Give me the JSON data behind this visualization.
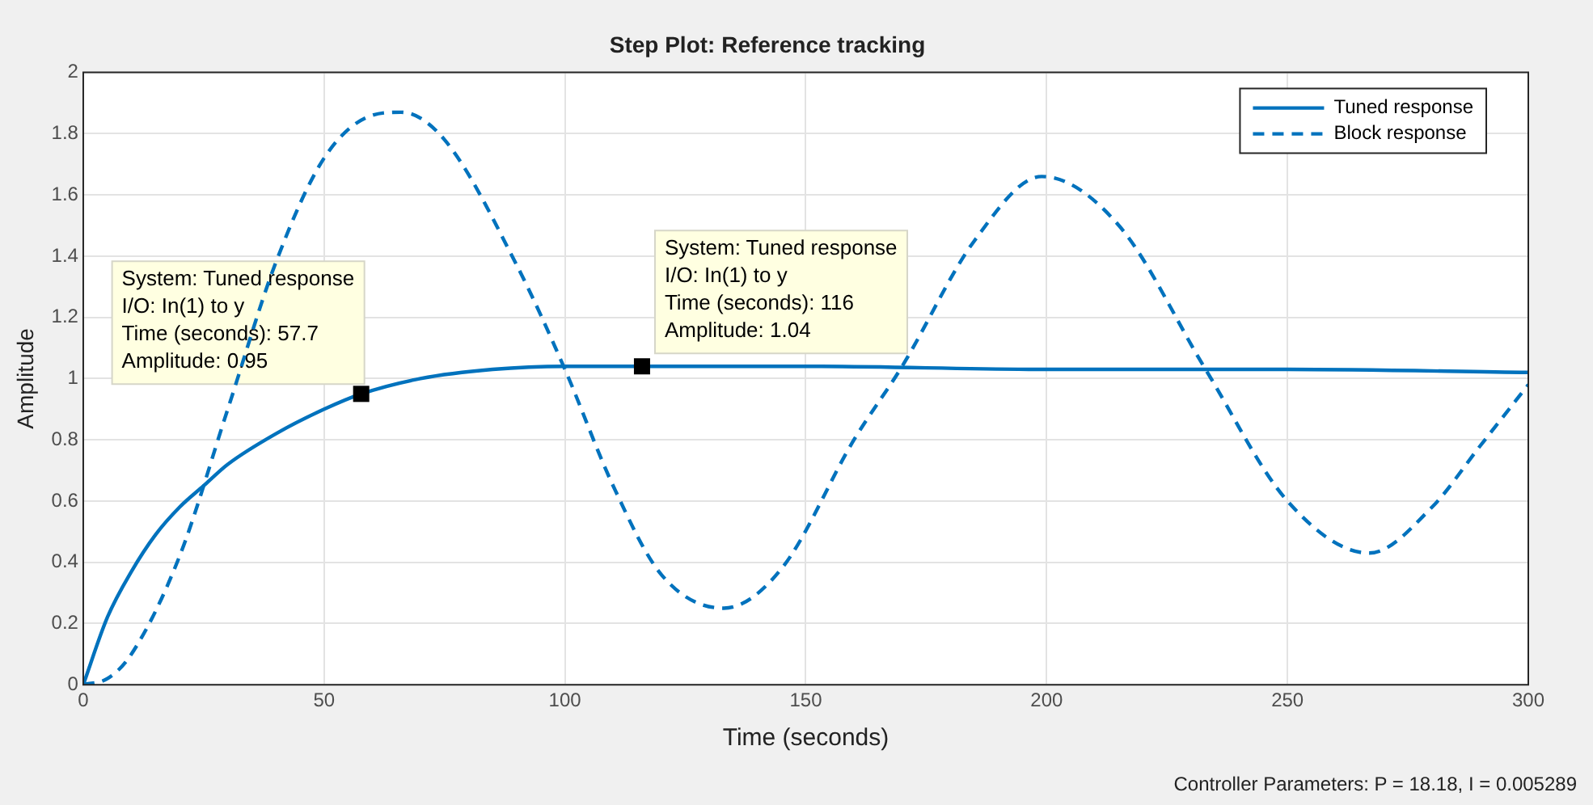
{
  "chart_data": {
    "type": "line",
    "title": "Step Plot: Reference tracking",
    "xlabel": "Time (seconds)",
    "ylabel": "Amplitude",
    "xlim": [
      0,
      300
    ],
    "xticks": [
      0,
      50,
      100,
      150,
      200,
      250,
      300
    ],
    "ylim": [
      0,
      2
    ],
    "yticks": [
      0,
      0.2,
      0.4,
      0.6,
      0.8,
      1,
      1.2,
      1.4,
      1.6,
      1.8,
      2
    ],
    "grid": true,
    "legend": "top right",
    "marker": "none",
    "series": [
      {
        "name": "Tuned response",
        "color": "#0072bd",
        "line_style": "solid",
        "x": [
          0,
          5,
          10,
          15,
          20,
          25,
          30,
          40,
          50,
          57.7,
          70,
          85,
          100,
          116,
          150,
          200,
          250,
          300
        ],
        "values": [
          0,
          0.22,
          0.37,
          0.49,
          0.58,
          0.65,
          0.72,
          0.82,
          0.9,
          0.95,
          1.0,
          1.03,
          1.04,
          1.04,
          1.04,
          1.03,
          1.03,
          1.02
        ]
      },
      {
        "name": "Block response",
        "color": "#0072bd",
        "line_style": "dashed",
        "x": [
          0,
          5,
          10,
          20,
          30,
          40,
          50,
          60,
          66,
          75,
          90,
          100,
          110,
          120,
          133,
          145,
          160,
          170,
          185,
          199,
          215,
          233,
          250,
          267,
          280,
          290,
          300
        ],
        "values": [
          0,
          0.02,
          0.1,
          0.42,
          0.9,
          1.38,
          1.72,
          1.86,
          1.87,
          1.78,
          1.37,
          1.03,
          0.65,
          0.36,
          0.25,
          0.38,
          0.8,
          1.04,
          1.45,
          1.66,
          1.5,
          1.03,
          0.6,
          0.43,
          0.58,
          0.78,
          0.98
        ]
      }
    ],
    "annotations": [
      {
        "text": "System: Tuned response\nI/O: In(1) to y\nTime (seconds): 57.7\nAmplitude: 0.95",
        "x": 57.7,
        "y": 0.95
      },
      {
        "text": "System: Tuned response\nI/O: In(1) to y\nTime (seconds): 116\nAmplitude: 1.04",
        "x": 116,
        "y": 1.04
      },
      "Controller Parameters: P = 18.18, I = 0.005289"
    ]
  }
}
